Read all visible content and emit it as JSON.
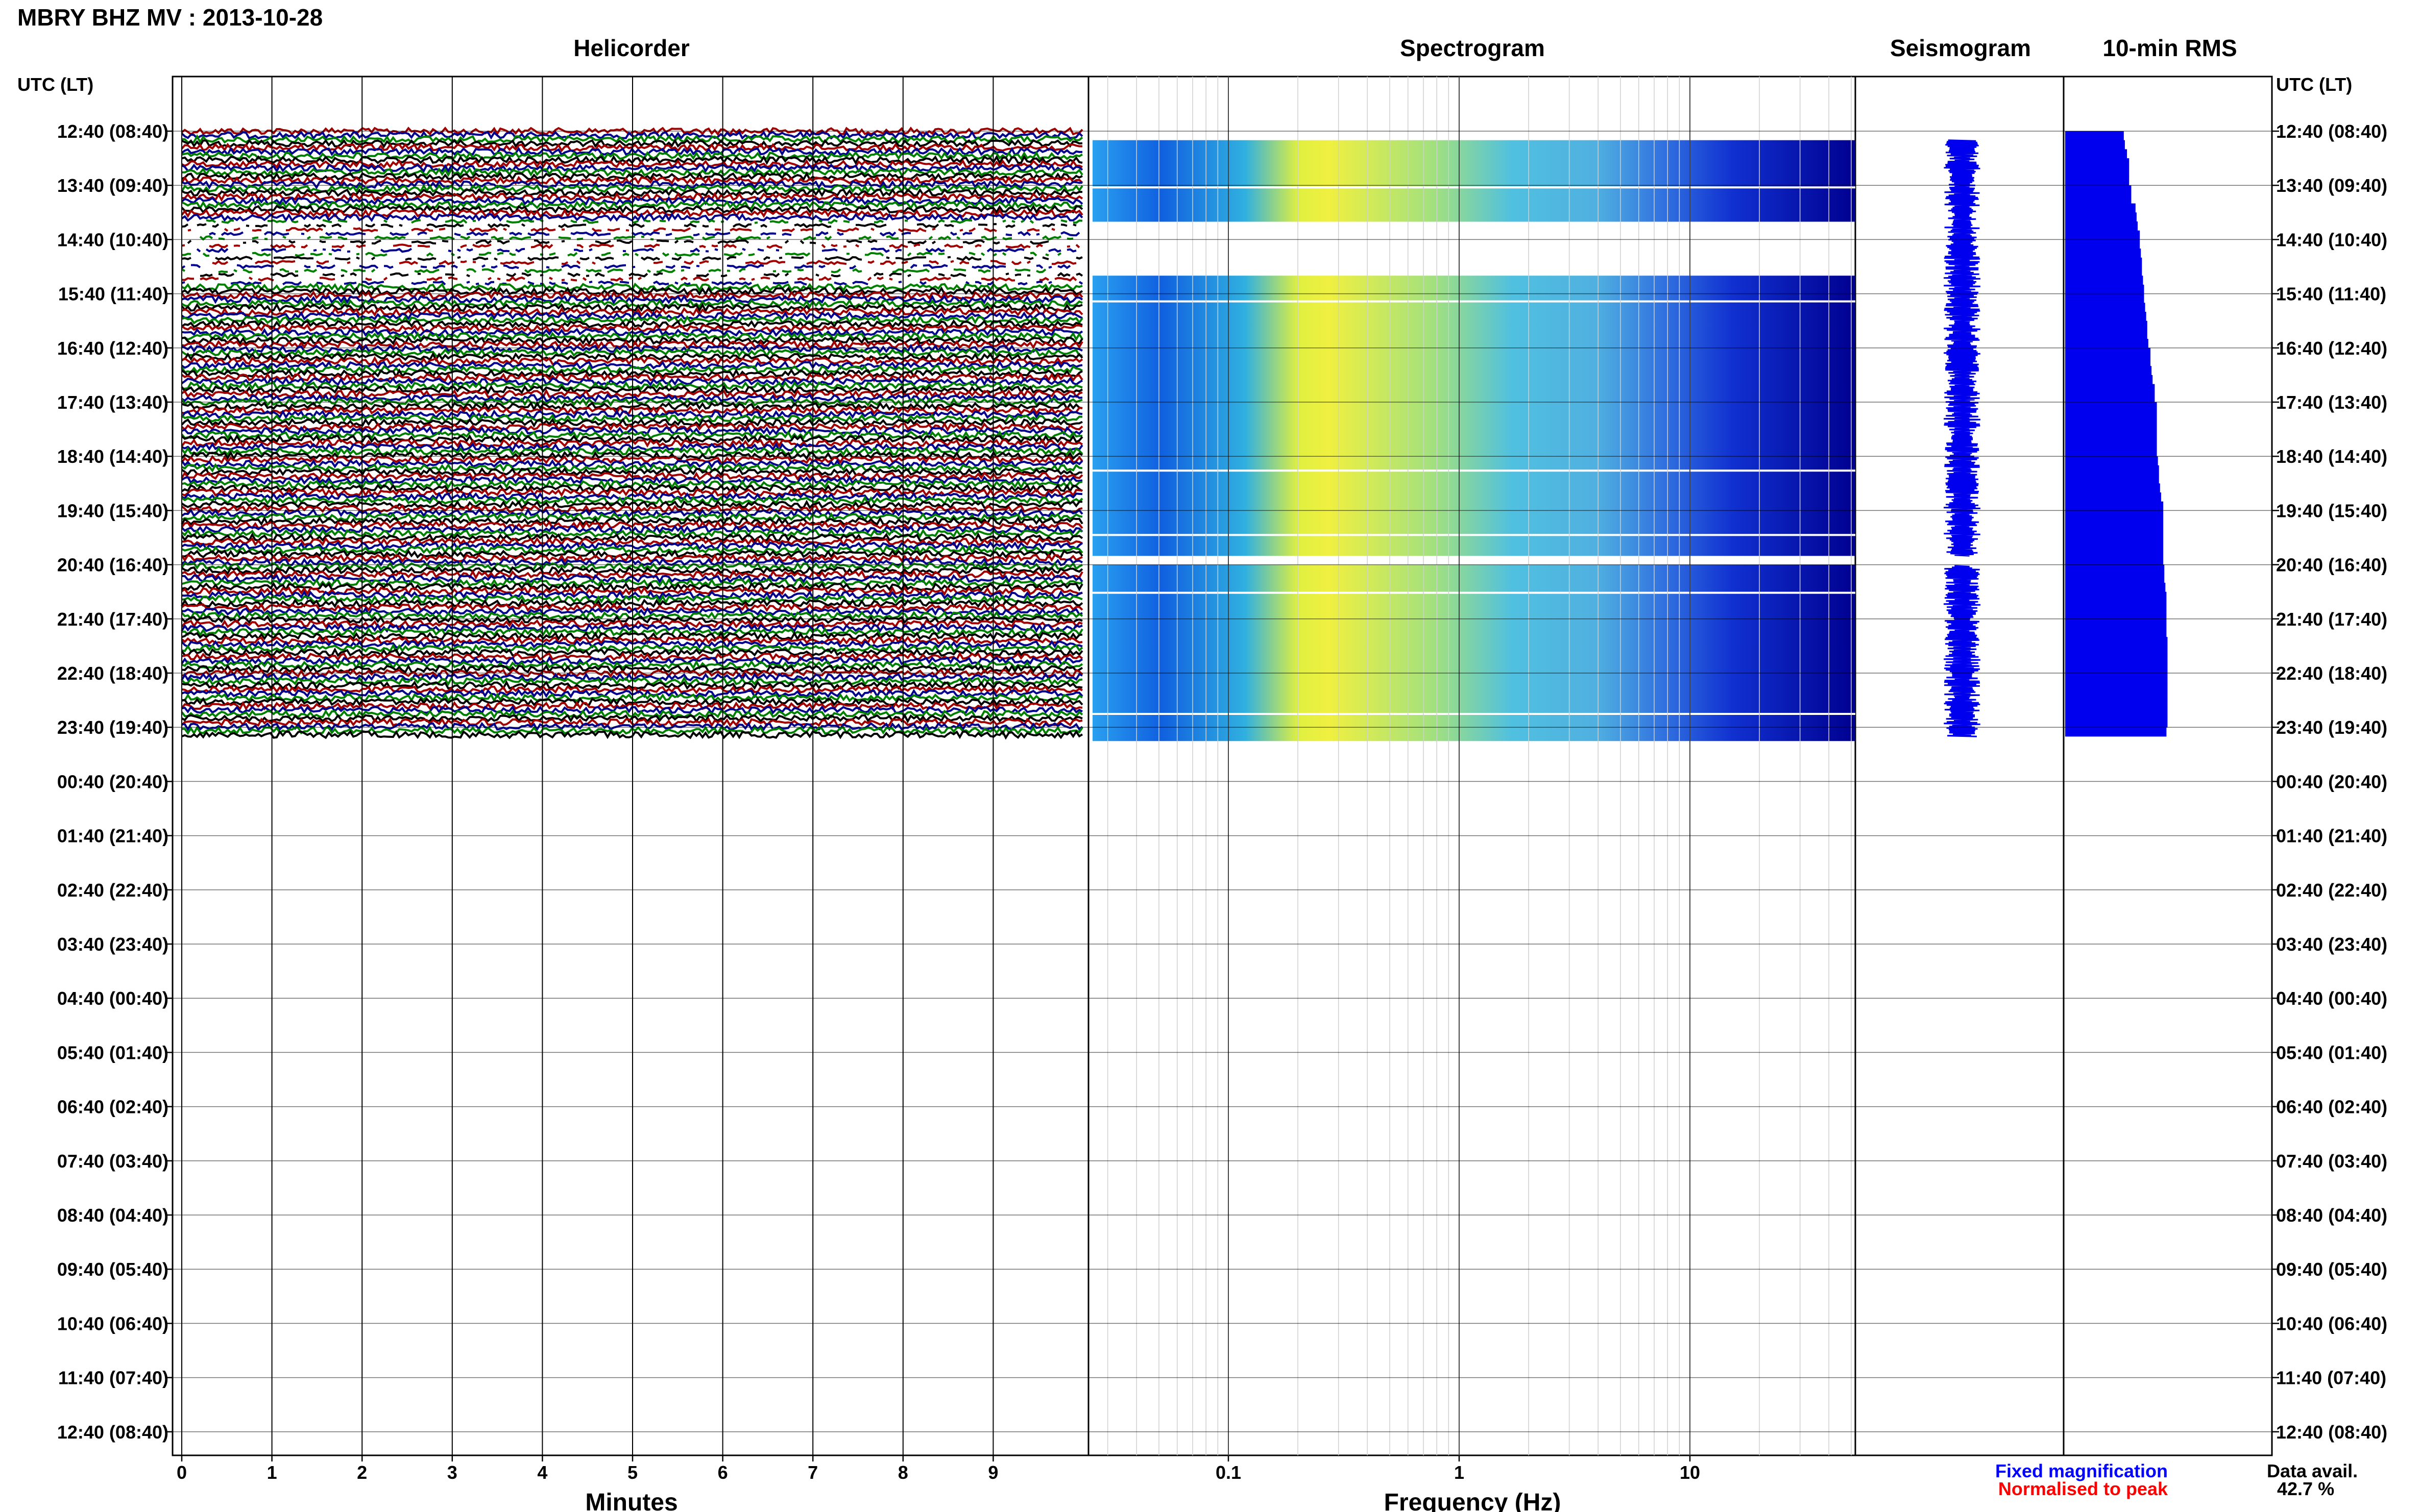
{
  "title": "MBRY BHZ MV : 2013-10-28",
  "panels": {
    "helicorder": "Helicorder",
    "spectrogram": "Spectrogram",
    "seismogram": "Seismogram",
    "rms": "10-min RMS"
  },
  "time_axis_label": "UTC (LT)",
  "time_labels": [
    "12:40 (08:40)",
    "13:40 (09:40)",
    "14:40 (10:40)",
    "15:40 (11:40)",
    "16:40 (12:40)",
    "17:40 (13:40)",
    "18:40 (14:40)",
    "19:40 (15:40)",
    "20:40 (16:40)",
    "21:40 (17:40)",
    "22:40 (18:40)",
    "23:40 (19:40)",
    "00:40 (20:40)",
    "01:40 (21:40)",
    "02:40 (22:40)",
    "03:40 (23:40)",
    "04:40 (00:40)",
    "05:40 (01:40)",
    "06:40 (02:40)",
    "07:40 (03:40)",
    "08:40 (04:40)",
    "09:40 (05:40)",
    "10:40 (06:40)",
    "11:40 (07:40)",
    "12:40 (08:40)"
  ],
  "x_axes": {
    "minutes_label": "Minutes",
    "minutes_ticks": [
      "0",
      "1",
      "2",
      "3",
      "4",
      "5",
      "6",
      "7",
      "8",
      "9"
    ],
    "frequency_label": "Frequency (Hz)",
    "frequency_ticks": [
      "0.1",
      "1",
      "10"
    ]
  },
  "legend": {
    "fixed": "Fixed magnification",
    "normalised": "Normalised to peak",
    "fixed_color": "#0000ff",
    "normalised_color": "#ff0000"
  },
  "data_availability": {
    "label": "Data avail.",
    "value": "42.7 %"
  },
  "chart_data": {
    "type": "heatmap",
    "description_type": "helicorder + spectrogram + seismogram + rms (24 h, 10-min lines)",
    "helicorder_colors": [
      "#a00000",
      "#00008c",
      "#008000",
      "#000000"
    ],
    "minutes_range": [
      0,
      10
    ],
    "frequency_range_hz": [
      0.03,
      50
    ],
    "frequency_scale": "log",
    "data_start": "12:40",
    "data_end": "23:50",
    "data_gaps": [
      {
        "from": "14:20",
        "to": "15:20",
        "note": "partial data in helicorder, no spectrogram"
      },
      {
        "from": "20:30",
        "to": "20:40",
        "note": "gap"
      }
    ],
    "rms_10min_relative": [
      0.55,
      0.56,
      0.58,
      0.6,
      0.6,
      0.6,
      0.62,
      0.62,
      0.66,
      0.67,
      0.68,
      0.7,
      0.7,
      0.71,
      0.72,
      0.72,
      0.73,
      0.74,
      0.74,
      0.75,
      0.76,
      0.77,
      0.77,
      0.78,
      0.8,
      0.8,
      0.81,
      0.82,
      0.84,
      0.84,
      0.86,
      0.86,
      0.86,
      0.86,
      0.86,
      0.86,
      0.87,
      0.88,
      0.88,
      0.89,
      0.9,
      0.92,
      0.92,
      0.92,
      0.92,
      0.92,
      0.92,
      0.92,
      0.93,
      0.93,
      0.94,
      0.95,
      0.95,
      0.95,
      0.95,
      0.95,
      0.96,
      0.96,
      0.96,
      0.96,
      0.96,
      0.96,
      0.96,
      0.96,
      0.96,
      0.96,
      0.95
    ]
  }
}
